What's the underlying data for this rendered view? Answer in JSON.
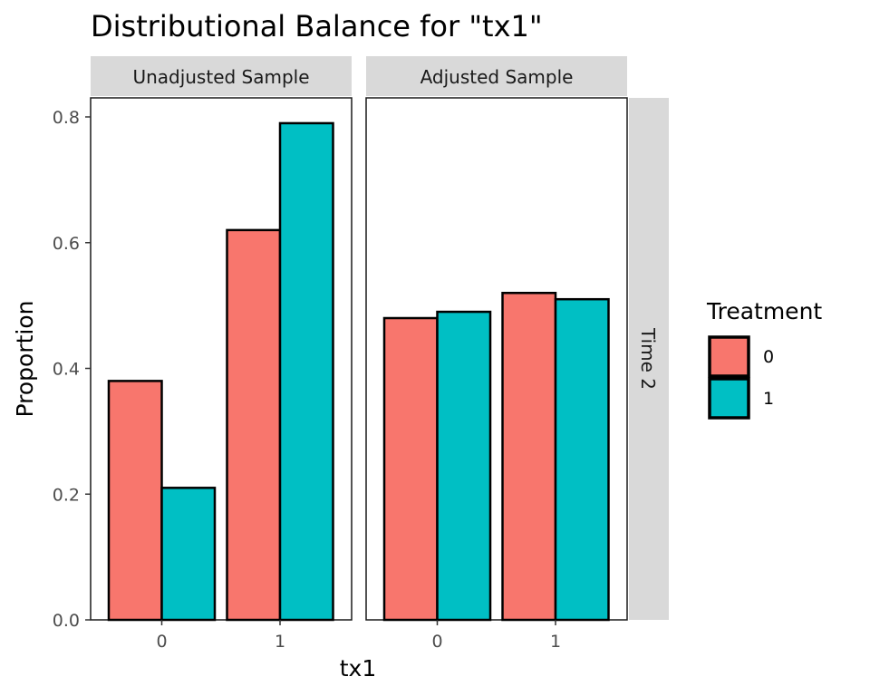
{
  "chart_data": {
    "type": "bar",
    "title": "Distributional Balance for \"tx1\"",
    "xlabel": "tx1",
    "ylabel": "Proportion",
    "ylim": [
      0,
      0.8
    ],
    "y_ticks": [
      "0.0",
      "0.2",
      "0.4",
      "0.6",
      "0.8"
    ],
    "categories": [
      "0",
      "1"
    ],
    "facet_row": "Time 2",
    "legend": {
      "title": "Treatment",
      "position": "right",
      "entries": [
        {
          "label": "0",
          "color": "#F8766D"
        },
        {
          "label": "1",
          "color": "#00BFC4"
        }
      ]
    },
    "grid": true,
    "panels": [
      {
        "name": "Unadjusted Sample",
        "series": [
          {
            "name": "0",
            "values": [
              0.38,
              0.62
            ]
          },
          {
            "name": "1",
            "values": [
              0.21,
              0.79
            ]
          }
        ]
      },
      {
        "name": "Adjusted Sample",
        "series": [
          {
            "name": "0",
            "values": [
              0.48,
              0.52
            ]
          },
          {
            "name": "1",
            "values": [
              0.49,
              0.51
            ]
          }
        ]
      }
    ]
  }
}
